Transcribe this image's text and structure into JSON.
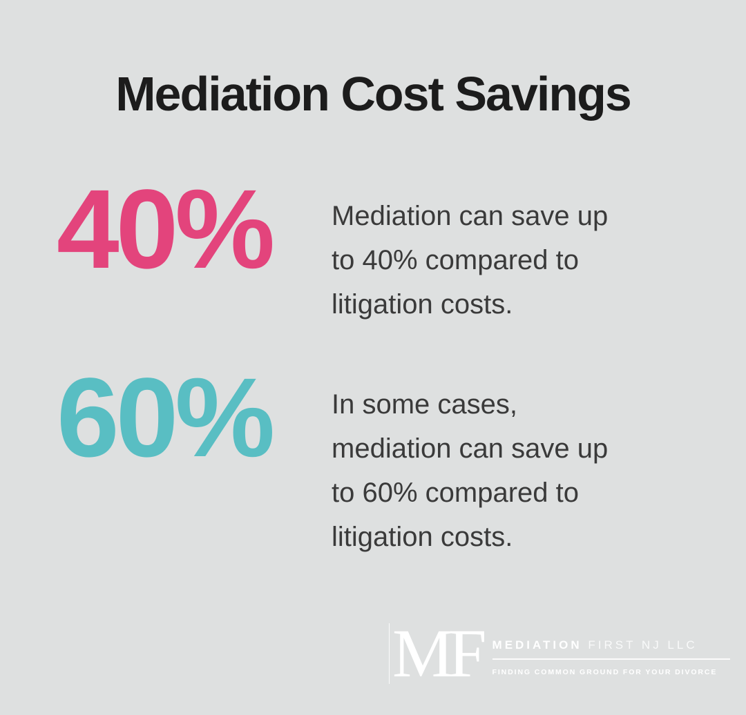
{
  "title": "Mediation Cost Savings",
  "colors": {
    "background": "#dee0e0",
    "accent_pink": "#e3447c",
    "accent_teal": "#59bec3",
    "title_text": "#1c1c1c",
    "body_text": "#3a3a3a",
    "logo_text": "#ffffff"
  },
  "stats": [
    {
      "value": "40%",
      "color_key": "accent_pink",
      "lines": [
        "Mediation can save up",
        "to 40% compared to",
        "litigation costs."
      ]
    },
    {
      "value": "60%",
      "color_key": "accent_teal",
      "lines": [
        "In some cases,",
        "mediation can save up",
        "to 60% compared to",
        "litigation costs."
      ]
    }
  ],
  "logo": {
    "monogram": "MF",
    "name_bold": "MEDIATION",
    "name_light": "FIRST NJ LLC",
    "tagline": "FINDING COMMON GROUND FOR YOUR DIVORCE"
  }
}
